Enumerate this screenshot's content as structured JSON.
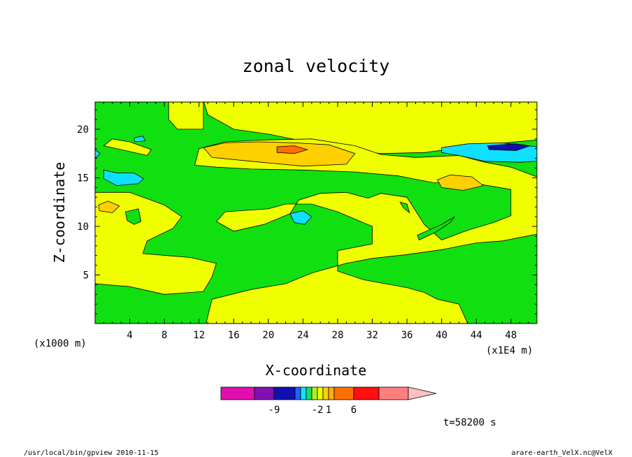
{
  "chart_data": {
    "type": "heatmap",
    "title": "zonal velocity",
    "xlabel": "X-coordinate",
    "ylabel": "Z-coordinate",
    "x_unit": "(x1E4 m)",
    "y_unit": "(x1000 m)",
    "xlim": [
      0,
      51
    ],
    "ylim": [
      0,
      22.8
    ],
    "x_ticks": [
      "4",
      "8",
      "12",
      "16",
      "20",
      "24",
      "28",
      "32",
      "36",
      "40",
      "44",
      "48"
    ],
    "y_ticks": [
      "5",
      "10",
      "15",
      "20"
    ],
    "x_tick_values": [
      4,
      8,
      12,
      16,
      20,
      24,
      28,
      32,
      36,
      40,
      44,
      48
    ],
    "y_tick_values": [
      5,
      10,
      15,
      20
    ],
    "time_label": "t=58200 s",
    "colorbar": {
      "colors": [
        "#e010b0",
        "#8010b0",
        "#1010b0",
        "#2060ff",
        "#10e0ff",
        "#10e070",
        "#b0f020",
        "#f0ff00",
        "#ffd000",
        "#ffb000",
        "#ff7000",
        "#ff1010",
        "#ff7f7f",
        "#ffc0c0"
      ],
      "tick_labels": [
        "-9",
        "-2",
        "1",
        "6"
      ],
      "tick_after_bin": [
        1,
        6,
        8,
        10
      ]
    },
    "background_color": "#10e010",
    "regions": [
      {
        "color": "#f0ff00",
        "points": [
          [
            0,
            23
          ],
          [
            8.5,
            23
          ],
          [
            8.5,
            21
          ],
          [
            9.5,
            20
          ],
          [
            12.5,
            20
          ],
          [
            12.5,
            23
          ]
        ]
      },
      {
        "color": "#f0ff00",
        "points": [
          [
            12.5,
            23
          ],
          [
            13,
            21.5
          ],
          [
            16,
            20
          ],
          [
            20,
            19.5
          ],
          [
            25,
            18.6
          ],
          [
            29,
            17.8
          ],
          [
            33,
            17.5
          ],
          [
            38,
            17.6
          ],
          [
            45,
            18.4
          ],
          [
            51,
            18.9
          ],
          [
            51,
            23
          ]
        ]
      },
      {
        "color": "#f0ff00",
        "points": [
          [
            0,
            13.5
          ],
          [
            4,
            13.5
          ],
          [
            8,
            12.2
          ],
          [
            10,
            11
          ],
          [
            9,
            9.8
          ],
          [
            6,
            8.5
          ],
          [
            5.5,
            7.2
          ],
          [
            11,
            6.8
          ],
          [
            14,
            6.2
          ],
          [
            13.5,
            4.8
          ],
          [
            12.5,
            3.3
          ],
          [
            8,
            3
          ],
          [
            4,
            3.8
          ],
          [
            0,
            4.1
          ]
        ]
      },
      {
        "color": "#f0ff00",
        "points": [
          [
            11.5,
            16.3
          ],
          [
            12,
            18
          ],
          [
            15,
            18.7
          ],
          [
            20,
            18.9
          ],
          [
            25,
            19
          ],
          [
            30,
            18.3
          ],
          [
            33,
            17.4
          ],
          [
            37,
            17.1
          ],
          [
            42,
            17.3
          ],
          [
            45,
            16.6
          ],
          [
            48,
            16.1
          ],
          [
            51,
            15.1
          ],
          [
            51,
            9.2
          ],
          [
            47,
            8.5
          ],
          [
            44,
            8.3
          ],
          [
            40,
            7.6
          ],
          [
            36,
            7.1
          ],
          [
            32,
            6.7
          ],
          [
            29,
            6.2
          ],
          [
            25,
            5.2
          ],
          [
            22,
            4.1
          ],
          [
            18,
            3.5
          ],
          [
            13.5,
            2.5
          ],
          [
            12.8,
            0
          ],
          [
            43,
            0
          ],
          [
            42,
            2
          ],
          [
            39.5,
            2.5
          ],
          [
            38,
            3.2
          ],
          [
            36,
            3.7
          ],
          [
            31,
            4.5
          ],
          [
            28,
            5.4
          ],
          [
            28,
            7.5
          ],
          [
            32,
            8.2
          ],
          [
            32,
            10
          ],
          [
            28,
            11.5
          ],
          [
            25,
            12.3
          ],
          [
            22,
            12.3
          ],
          [
            20,
            11.8
          ],
          [
            15,
            11.5
          ],
          [
            14,
            10.5
          ],
          [
            16,
            9.5
          ],
          [
            19.5,
            10.2
          ],
          [
            22.5,
            11.3
          ],
          [
            23.5,
            12.7
          ],
          [
            26,
            13.4
          ],
          [
            29,
            13.5
          ],
          [
            31.5,
            12.9
          ],
          [
            33,
            13.4
          ],
          [
            36,
            13
          ],
          [
            38,
            10.2
          ],
          [
            40,
            8.6
          ],
          [
            43,
            9.6
          ],
          [
            46,
            10.4
          ],
          [
            48,
            11.1
          ],
          [
            48,
            13.8
          ],
          [
            44,
            14.4
          ],
          [
            39,
            14.5
          ],
          [
            35,
            15.2
          ],
          [
            30,
            15.6
          ],
          [
            24,
            15.8
          ],
          [
            18,
            15.9
          ],
          [
            14,
            16.1
          ]
        ]
      },
      {
        "color": "#f0ff00",
        "points": [
          [
            1,
            18.3
          ],
          [
            3.5,
            17.8
          ],
          [
            6,
            17.3
          ],
          [
            6.5,
            17.9
          ],
          [
            4,
            18.7
          ],
          [
            2,
            19
          ]
        ]
      },
      {
        "color": "#ffd000",
        "points": [
          [
            12.5,
            18.1
          ],
          [
            15,
            18.6
          ],
          [
            19,
            18.7
          ],
          [
            23,
            18.6
          ],
          [
            27,
            18.4
          ],
          [
            30,
            17.5
          ],
          [
            29,
            16.4
          ],
          [
            24,
            16.2
          ],
          [
            18,
            16.7
          ],
          [
            13.5,
            17.1
          ]
        ]
      },
      {
        "color": "#ff7000",
        "points": [
          [
            21,
            18.2
          ],
          [
            23,
            18.3
          ],
          [
            24.5,
            17.9
          ],
          [
            23,
            17.5
          ],
          [
            21,
            17.6
          ]
        ]
      },
      {
        "color": "#10e0ff",
        "points": [
          [
            1,
            15.8
          ],
          [
            2.5,
            15.5
          ],
          [
            4.5,
            15.5
          ],
          [
            5.6,
            14.9
          ],
          [
            5,
            14.4
          ],
          [
            2.5,
            14.2
          ],
          [
            1,
            14.9
          ]
        ]
      },
      {
        "color": "#10e0ff",
        "points": [
          [
            0,
            17.9
          ],
          [
            0.6,
            17.5
          ],
          [
            0,
            17
          ]
        ]
      },
      {
        "color": "#10e0ff",
        "points": [
          [
            4.5,
            19.1
          ],
          [
            5.5,
            19.3
          ],
          [
            5.8,
            18.8
          ],
          [
            4.6,
            18.7
          ]
        ]
      },
      {
        "color": "#10e0ff",
        "points": [
          [
            22.5,
            11.3
          ],
          [
            24,
            11.6
          ],
          [
            25,
            11
          ],
          [
            24.2,
            10.2
          ],
          [
            23,
            10.4
          ]
        ]
      },
      {
        "color": "#10e0ff",
        "points": [
          [
            40,
            18.1
          ],
          [
            43,
            18.5
          ],
          [
            47,
            18.6
          ],
          [
            51,
            18.2
          ],
          [
            51,
            16.7
          ],
          [
            49,
            16.6
          ],
          [
            45,
            16.7
          ],
          [
            42,
            17.3
          ],
          [
            40,
            17.6
          ]
        ]
      },
      {
        "color": "#1010b0",
        "points": [
          [
            45.3,
            18.3
          ],
          [
            48.5,
            18.5
          ],
          [
            50.2,
            18.3
          ],
          [
            48.6,
            17.8
          ],
          [
            45.5,
            17.9
          ]
        ]
      },
      {
        "color": "#ffd000",
        "points": [
          [
            39.5,
            14.8
          ],
          [
            41,
            15.3
          ],
          [
            43.5,
            15.1
          ],
          [
            44.8,
            14.2
          ],
          [
            42.5,
            13.7
          ],
          [
            40,
            14
          ]
        ]
      },
      {
        "color": "#ffd000",
        "points": [
          [
            0.4,
            12.2
          ],
          [
            1.5,
            12.6
          ],
          [
            2.8,
            12.1
          ],
          [
            2,
            11.4
          ],
          [
            0.5,
            11.6
          ]
        ]
      },
      {
        "color": "#10e010",
        "points": [
          [
            3.5,
            11.5
          ],
          [
            5,
            11.8
          ],
          [
            5.3,
            10.5
          ],
          [
            4.5,
            10.2
          ],
          [
            3.7,
            10.6
          ]
        ]
      },
      {
        "color": "#10e010",
        "points": [
          [
            37.2,
            9.1
          ],
          [
            40,
            10.2
          ],
          [
            41.5,
            11
          ],
          [
            41,
            10.4
          ],
          [
            39.3,
            9.4
          ],
          [
            37.4,
            8.6
          ]
        ]
      },
      {
        "color": "#10e010",
        "points": [
          [
            35.2,
            12.5
          ],
          [
            36,
            12.3
          ],
          [
            36.3,
            11.4
          ],
          [
            35.6,
            11.9
          ]
        ]
      }
    ]
  },
  "footer": {
    "left": "/usr/local/bin/gpview 2010-11-15",
    "right": "arare-earth_VelX.nc@VelX"
  }
}
